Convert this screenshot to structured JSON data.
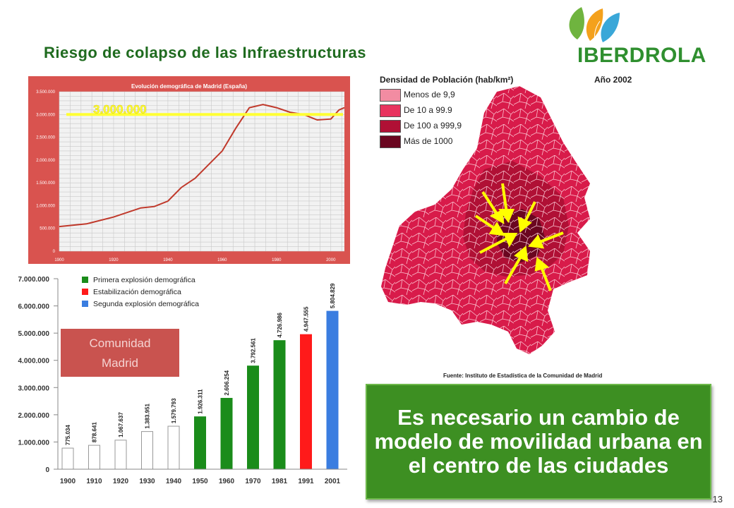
{
  "slide": {
    "title": "Riesgo de colapso de las Infraestructuras",
    "logo_text": "IBERDROLA",
    "page_number": "13",
    "callout": "Es necesario un cambio de modelo de movilidad urbana en el centro de las ciudades"
  },
  "map": {
    "legend_title": "Densidad de Población (hab/km²)",
    "year": "Año 2002",
    "items": [
      {
        "label": "Menos de 9,9",
        "color": "#f28ca2"
      },
      {
        "label": "De 10 a 99.9",
        "color": "#e8335f"
      },
      {
        "label": "De 100 a 999,9",
        "color": "#b01035"
      },
      {
        "label": "Más de 1000",
        "color": "#6a0620"
      }
    ],
    "source": "Fuente: Instituto de Estadística de la Comunidad de Madrid"
  },
  "chart_data": [
    {
      "type": "line",
      "title": "Evolución demográfica de Madrid (España)",
      "x": [
        1900,
        1910,
        1920,
        1930,
        1935,
        1940,
        1945,
        1950,
        1955,
        1960,
        1965,
        1970,
        1975,
        1980,
        1985,
        1990,
        1995,
        2000,
        2003,
        2005
      ],
      "values": [
        540000,
        600000,
        750000,
        950000,
        980000,
        1100000,
        1400000,
        1600000,
        1900000,
        2200000,
        2700000,
        3150000,
        3220000,
        3150000,
        3050000,
        3000000,
        2880000,
        2900000,
        3100000,
        3150000
      ],
      "threshold": {
        "value": 3000000,
        "label": "3.000.000"
      },
      "xlabel": "",
      "ylabel": "",
      "ylim": [
        0,
        3500000
      ],
      "xlim": [
        1900,
        2005
      ],
      "yticks": [
        "0",
        "500.000",
        "1.000.000",
        "1.500.000",
        "2.000.000",
        "2.500.000",
        "3.000.000",
        "3.500.000"
      ],
      "xticks": [
        "1900",
        "1920",
        "1940",
        "1960",
        "1980",
        "2000"
      ],
      "grid": true,
      "line_color": "#c0392b",
      "background_color": "#d9534f"
    },
    {
      "type": "bar",
      "categories": [
        "1900",
        "1910",
        "1920",
        "1930",
        "1940",
        "1950",
        "1960",
        "1970",
        "1981",
        "1991",
        "2001"
      ],
      "values": [
        775034,
        878641,
        1067637,
        1383951,
        1579793,
        1926311,
        2606254,
        3792561,
        4726986,
        4947555,
        5804829
      ],
      "value_labels": [
        "775.034",
        "878.641",
        "1.067.637",
        "1.383.951",
        "1.579.793",
        "1.926.311",
        "2.606.254",
        "3.792.561",
        "4.726.986",
        "4.947.555",
        "5.804.829"
      ],
      "colors": [
        "#ffffff",
        "#ffffff",
        "#ffffff",
        "#ffffff",
        "#ffffff",
        "#1a8c1a",
        "#1a8c1a",
        "#1a8c1a",
        "#1a8c1a",
        "#ff1a1a",
        "#3a7de0"
      ],
      "legend": [
        {
          "label": "Primera explosión demográfica",
          "color": "#1a8c1a"
        },
        {
          "label": "Estabilización demográfica",
          "color": "#ff1a1a"
        },
        {
          "label": "Segunda explosión demográfica",
          "color": "#3a7de0"
        }
      ],
      "legend_position": "top-left",
      "ylim": [
        0,
        7000000
      ],
      "yticks": [
        "0",
        "1.000.000",
        "2.000.000",
        "3.000.000",
        "4.000.000",
        "5.000.000",
        "6.000.000",
        "7.000.000"
      ],
      "annotation": "Comunidad Madrid",
      "xlabel": "",
      "ylabel": ""
    }
  ]
}
